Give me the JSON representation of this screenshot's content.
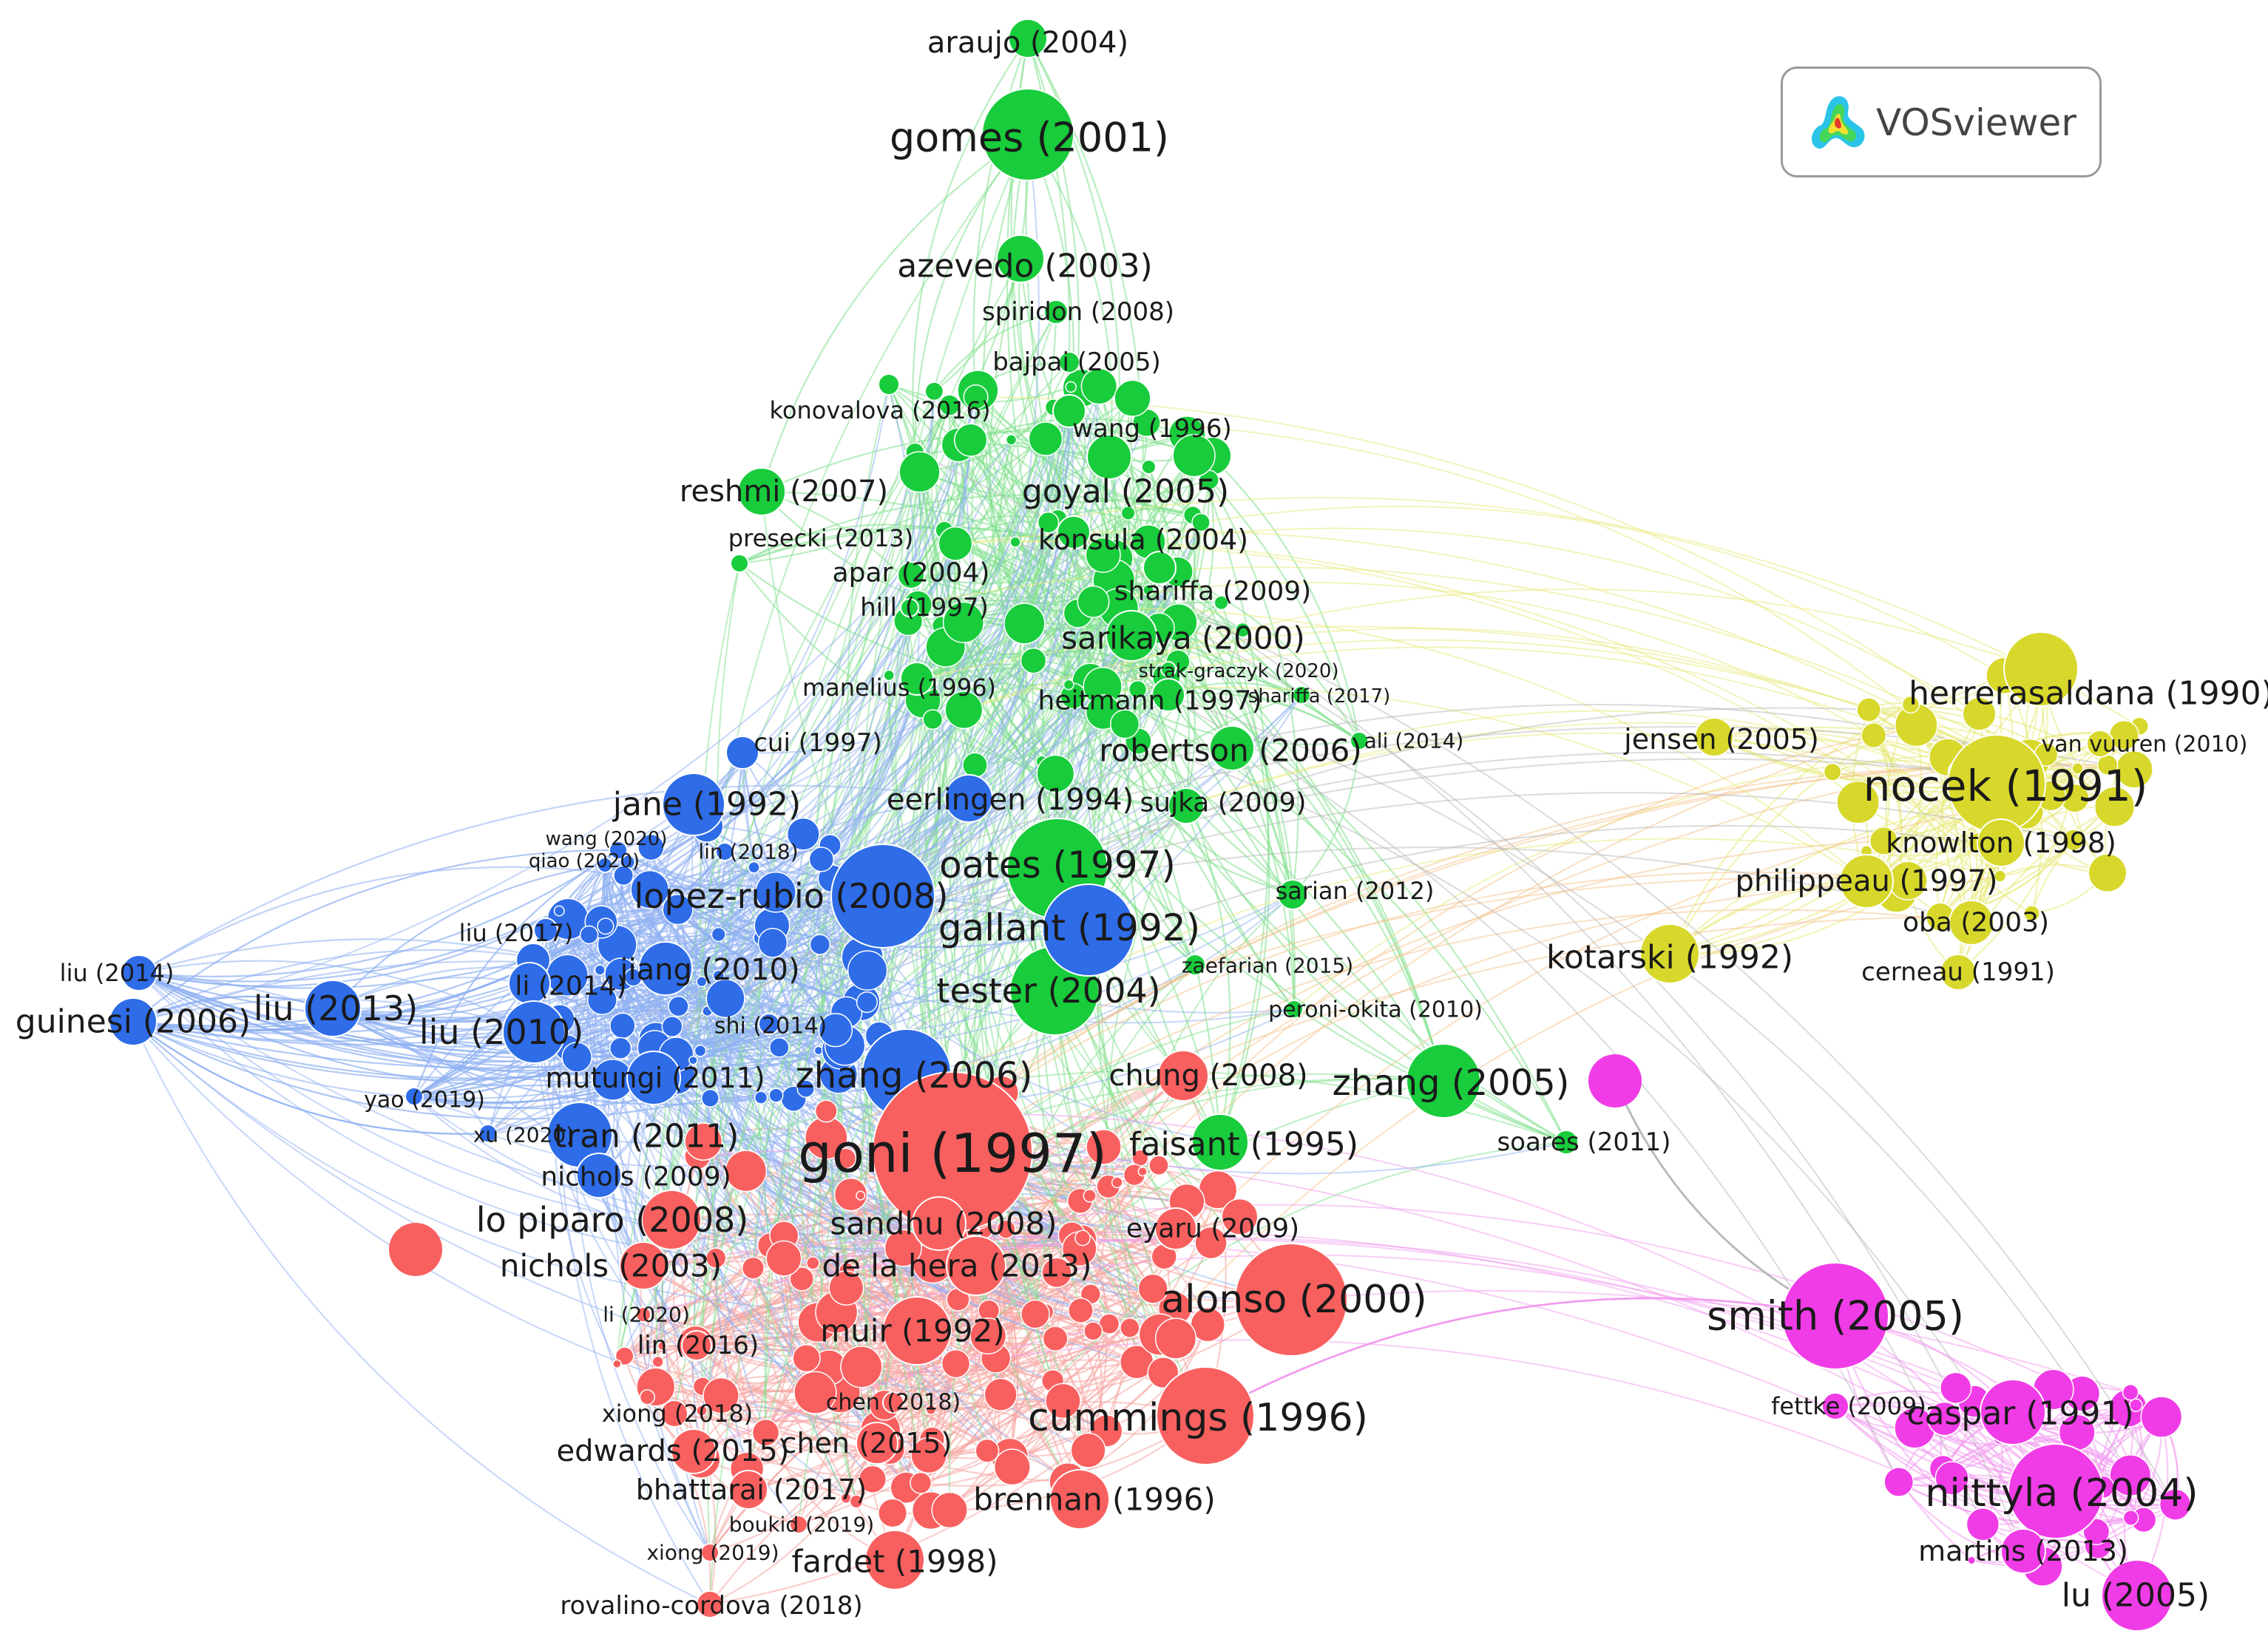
{
  "badge": {
    "text": "VOSviewer",
    "logo_icon": "vosviewer-logo-icon"
  },
  "colors": {
    "red": "#f8605f",
    "blue": "#2e6ce8",
    "green": "#18cc3c",
    "yellow": "#d7d82b",
    "magenta": "#f03ce6",
    "link_red": "#f6a6a2",
    "link_blue": "#8fb0f2",
    "link_green": "#7fe08c",
    "link_yellow": "#e8ea7a",
    "link_magenta": "#f29af0",
    "link_grey": "#b8b8b8",
    "link_orange": "#f5c28a"
  },
  "nodes": [
    {
      "id": "araujo",
      "label": "araujo (2004)",
      "cluster": "green",
      "weight": 2
    },
    {
      "id": "gomes",
      "label": "gomes (2001)",
      "cluster": "green",
      "weight": 7
    },
    {
      "id": "azevedo",
      "label": "azevedo (2003)",
      "cluster": "green",
      "weight": 4
    },
    {
      "id": "spiridon",
      "label": "spiridon (2008)",
      "cluster": "green",
      "weight": 1
    },
    {
      "id": "bajpai",
      "label": "bajpai (2005)",
      "cluster": "green",
      "weight": 1
    },
    {
      "id": "konovalova",
      "label": "konovalova (2016)",
      "cluster": "green",
      "weight": 1
    },
    {
      "id": "wang1996",
      "label": "wang (1996)",
      "cluster": "green",
      "weight": 1
    },
    {
      "id": "reshmi",
      "label": "reshmi (2007)",
      "cluster": "green",
      "weight": 3
    },
    {
      "id": "goyal",
      "label": "goyal (2005)",
      "cluster": "green",
      "weight": 4
    },
    {
      "id": "presecki",
      "label": "presecki (2013)",
      "cluster": "green",
      "weight": 1
    },
    {
      "id": "konsula",
      "label": "konsula (2004)",
      "cluster": "green",
      "weight": 3
    },
    {
      "id": "apar",
      "label": "apar (2004)",
      "cluster": "green",
      "weight": 2
    },
    {
      "id": "hill",
      "label": "hill (1997)",
      "cluster": "green",
      "weight": 1
    },
    {
      "id": "shariffa2009",
      "label": "shariffa (2009)",
      "cluster": "green",
      "weight": 2
    },
    {
      "id": "sarikaya",
      "label": "sarikaya (2000)",
      "cluster": "green",
      "weight": 4
    },
    {
      "id": "manelius",
      "label": "manelius (1996)",
      "cluster": "green",
      "weight": 1
    },
    {
      "id": "strak",
      "label": "strak-graczyk (2020)",
      "cluster": "green",
      "weight": 0.5
    },
    {
      "id": "heitmann",
      "label": "heitmann (1997)",
      "cluster": "green",
      "weight": 2
    },
    {
      "id": "shariffa2017",
      "label": "shariffa (2017)",
      "cluster": "green",
      "weight": 0.5
    },
    {
      "id": "ali",
      "label": "ali (2014)",
      "cluster": "green",
      "weight": 0.5
    },
    {
      "id": "robertson",
      "label": "robertson (2006)",
      "cluster": "green",
      "weight": 4
    },
    {
      "id": "sujka",
      "label": "sujka (2009)",
      "cluster": "green",
      "weight": 2
    },
    {
      "id": "oates",
      "label": "oates (1997)",
      "cluster": "green",
      "weight": 5
    },
    {
      "id": "sarian",
      "label": "sarian (2012)",
      "cluster": "green",
      "weight": 1
    },
    {
      "id": "tester",
      "label": "tester (2004)",
      "cluster": "green",
      "weight": 5
    },
    {
      "id": "zaefarian",
      "label": "zaefarian (2015)",
      "cluster": "green",
      "weight": 0.5
    },
    {
      "id": "peroni",
      "label": "peroni-okita (2010)",
      "cluster": "green",
      "weight": 0.5
    },
    {
      "id": "zhang2005",
      "label": "zhang (2005)",
      "cluster": "green",
      "weight": 5
    },
    {
      "id": "soares",
      "label": "soares (2011)",
      "cluster": "green",
      "weight": 1
    },
    {
      "id": "faisant",
      "label": "faisant (1995)",
      "cluster": "green",
      "weight": 3
    },
    {
      "id": "cui",
      "label": "cui (1997)",
      "cluster": "blue",
      "weight": 2
    },
    {
      "id": "jane",
      "label": "jane (1992)",
      "cluster": "blue",
      "weight": 4
    },
    {
      "id": "eerlingen",
      "label": "eerlingen (1994)",
      "cluster": "blue",
      "weight": 3
    },
    {
      "id": "wang2020",
      "label": "wang (2020)",
      "cluster": "blue",
      "weight": 0.5
    },
    {
      "id": "lin2018",
      "label": "lin (2018)",
      "cluster": "blue",
      "weight": 0.5
    },
    {
      "id": "qiao",
      "label": "qiao (2020)",
      "cluster": "blue",
      "weight": 0.5
    },
    {
      "id": "lopez",
      "label": "lopez-rubio (2008)",
      "cluster": "blue",
      "weight": 5
    },
    {
      "id": "gallant",
      "label": "gallant (1992)",
      "cluster": "blue",
      "weight": 6
    },
    {
      "id": "liu2017",
      "label": "liu (2017)",
      "cluster": "blue",
      "weight": 1
    },
    {
      "id": "liu2014",
      "label": "liu (2014)",
      "cluster": "blue",
      "weight": 1
    },
    {
      "id": "jiang",
      "label": "jiang (2010)",
      "cluster": "blue",
      "weight": 3
    },
    {
      "id": "li2014",
      "label": "li (2014)",
      "cluster": "blue",
      "weight": 2
    },
    {
      "id": "guinesi",
      "label": "guinesi (2006)",
      "cluster": "blue",
      "weight": 2
    },
    {
      "id": "liu2013",
      "label": "liu (2013)",
      "cluster": "blue",
      "weight": 3
    },
    {
      "id": "liu2010",
      "label": "liu (2010)",
      "cluster": "blue",
      "weight": 3
    },
    {
      "id": "shi",
      "label": "shi (2014)",
      "cluster": "blue",
      "weight": 1
    },
    {
      "id": "mutungi",
      "label": "mutungi (2011)",
      "cluster": "blue",
      "weight": 2
    },
    {
      "id": "yao",
      "label": "yao (2019)",
      "cluster": "blue",
      "weight": 0.5
    },
    {
      "id": "zhang2006",
      "label": "zhang (2006)",
      "cluster": "blue",
      "weight": 4
    },
    {
      "id": "xu",
      "label": "xu (2020)",
      "cluster": "blue",
      "weight": 0.5
    },
    {
      "id": "tran",
      "label": "tran (2011)",
      "cluster": "blue",
      "weight": 3
    },
    {
      "id": "nichols2009",
      "label": "nichols (2009)",
      "cluster": "blue",
      "weight": 2
    },
    {
      "id": "goni",
      "label": "goni (1997)",
      "cluster": "red",
      "weight": 10
    },
    {
      "id": "chung",
      "label": "chung (2008)",
      "cluster": "red",
      "weight": 3
    },
    {
      "id": "lopiparo",
      "label": "lo piparo (2008)",
      "cluster": "red",
      "weight": 4
    },
    {
      "id": "sandhu",
      "label": "sandhu (2008)",
      "cluster": "red",
      "weight": 3
    },
    {
      "id": "eyaru",
      "label": "eyaru (2009)",
      "cluster": "red",
      "weight": 2
    },
    {
      "id": "nichols2003",
      "label": "nichols (2003)",
      "cluster": "red",
      "weight": 3
    },
    {
      "id": "delahera",
      "label": "de la hera (2013)",
      "cluster": "red",
      "weight": 3
    },
    {
      "id": "alonso",
      "label": "alonso (2000)",
      "cluster": "red",
      "weight": 6
    },
    {
      "id": "li2020",
      "label": "li (2020)",
      "cluster": "red",
      "weight": 0.5
    },
    {
      "id": "lin2016",
      "label": "lin (2016)",
      "cluster": "red",
      "weight": 1
    },
    {
      "id": "muir",
      "label": "muir (1992)",
      "cluster": "red",
      "weight": 3
    },
    {
      "id": "chen2018",
      "label": "chen (2018)",
      "cluster": "red",
      "weight": 1
    },
    {
      "id": "xiong2018",
      "label": "xiong (2018)",
      "cluster": "red",
      "weight": 1
    },
    {
      "id": "cummings",
      "label": "cummings (1996)",
      "cluster": "red",
      "weight": 6
    },
    {
      "id": "edwards",
      "label": "edwards (2015)",
      "cluster": "red",
      "weight": 2
    },
    {
      "id": "chen2015",
      "label": "chen (2015)",
      "cluster": "red",
      "weight": 2
    },
    {
      "id": "bhattarai",
      "label": "bhattarai (2017)",
      "cluster": "red",
      "weight": 2
    },
    {
      "id": "brennan",
      "label": "brennan (1996)",
      "cluster": "red",
      "weight": 4
    },
    {
      "id": "boukid",
      "label": "boukid (2019)",
      "cluster": "red",
      "weight": 0.5
    },
    {
      "id": "xiong2019",
      "label": "xiong (2019)",
      "cluster": "red",
      "weight": 0.5
    },
    {
      "id": "fardet",
      "label": "fardet (1998)",
      "cluster": "red",
      "weight": 3
    },
    {
      "id": "rovalino",
      "label": "rovalino-cordova (2018)",
      "cluster": "red",
      "weight": 1
    },
    {
      "id": "herrera",
      "label": "herrerasaldana (1990)",
      "cluster": "yellow",
      "weight": 4
    },
    {
      "id": "jensen",
      "label": "jensen (2005)",
      "cluster": "yellow",
      "weight": 2
    },
    {
      "id": "vanvuuren",
      "label": "van vuuren (2010)",
      "cluster": "yellow",
      "weight": 1
    },
    {
      "id": "nocek",
      "label": "nocek (1991)",
      "cluster": "yellow",
      "weight": 6
    },
    {
      "id": "knowlton",
      "label": "knowlton (1998)",
      "cluster": "yellow",
      "weight": 3
    },
    {
      "id": "philippeau",
      "label": "philippeau (1997)",
      "cluster": "yellow",
      "weight": 3
    },
    {
      "id": "oba",
      "label": "oba (2003)",
      "cluster": "yellow",
      "weight": 2
    },
    {
      "id": "kotarski",
      "label": "kotarski (1992)",
      "cluster": "yellow",
      "weight": 3
    },
    {
      "id": "cerneau",
      "label": "cerneau (1991)",
      "cluster": "yellow",
      "weight": 1
    },
    {
      "id": "smith",
      "label": "smith (2005)",
      "cluster": "magenta",
      "weight": 6
    },
    {
      "id": "fettke",
      "label": "fettke (2009)",
      "cluster": "magenta",
      "weight": 1
    },
    {
      "id": "caspar",
      "label": "caspar (1991)",
      "cluster": "magenta",
      "weight": 4
    },
    {
      "id": "niittyla",
      "label": "niittyla (2004)",
      "cluster": "magenta",
      "weight": 6
    },
    {
      "id": "martins",
      "label": "martins (2013)",
      "cluster": "magenta",
      "weight": 2
    },
    {
      "id": "lu",
      "label": "lu (2005)",
      "cluster": "magenta",
      "weight": 4
    }
  ]
}
